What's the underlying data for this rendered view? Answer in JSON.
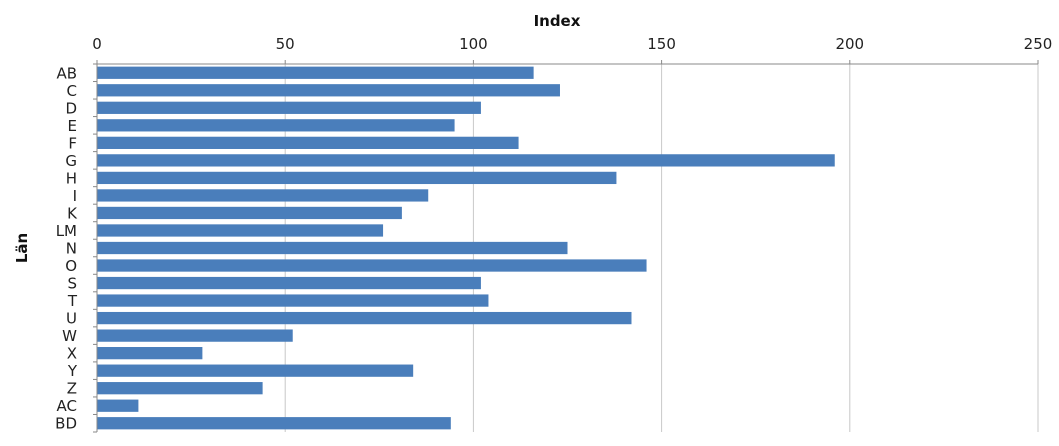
{
  "chart_data": {
    "type": "bar",
    "orientation": "horizontal",
    "title": "",
    "xlabel": "Index",
    "ylabel": "Län",
    "xlim": [
      0,
      250
    ],
    "x_ticks": [
      "0",
      "50",
      "100",
      "150",
      "200",
      "250"
    ],
    "x_axis_position": "top",
    "grid": true,
    "bar_color": "#4a7ebb",
    "categories": [
      "AB",
      "C",
      "D",
      "E",
      "F",
      "G",
      "H",
      "I",
      "K",
      "LM",
      "N",
      "O",
      "S",
      "T",
      "U",
      "W",
      "X",
      "Y",
      "Z",
      "AC",
      "BD"
    ],
    "values": [
      116,
      123,
      102,
      95,
      112,
      196,
      138,
      88,
      81,
      76,
      125,
      146,
      102,
      104,
      142,
      52,
      28,
      84,
      44,
      11,
      94
    ]
  }
}
